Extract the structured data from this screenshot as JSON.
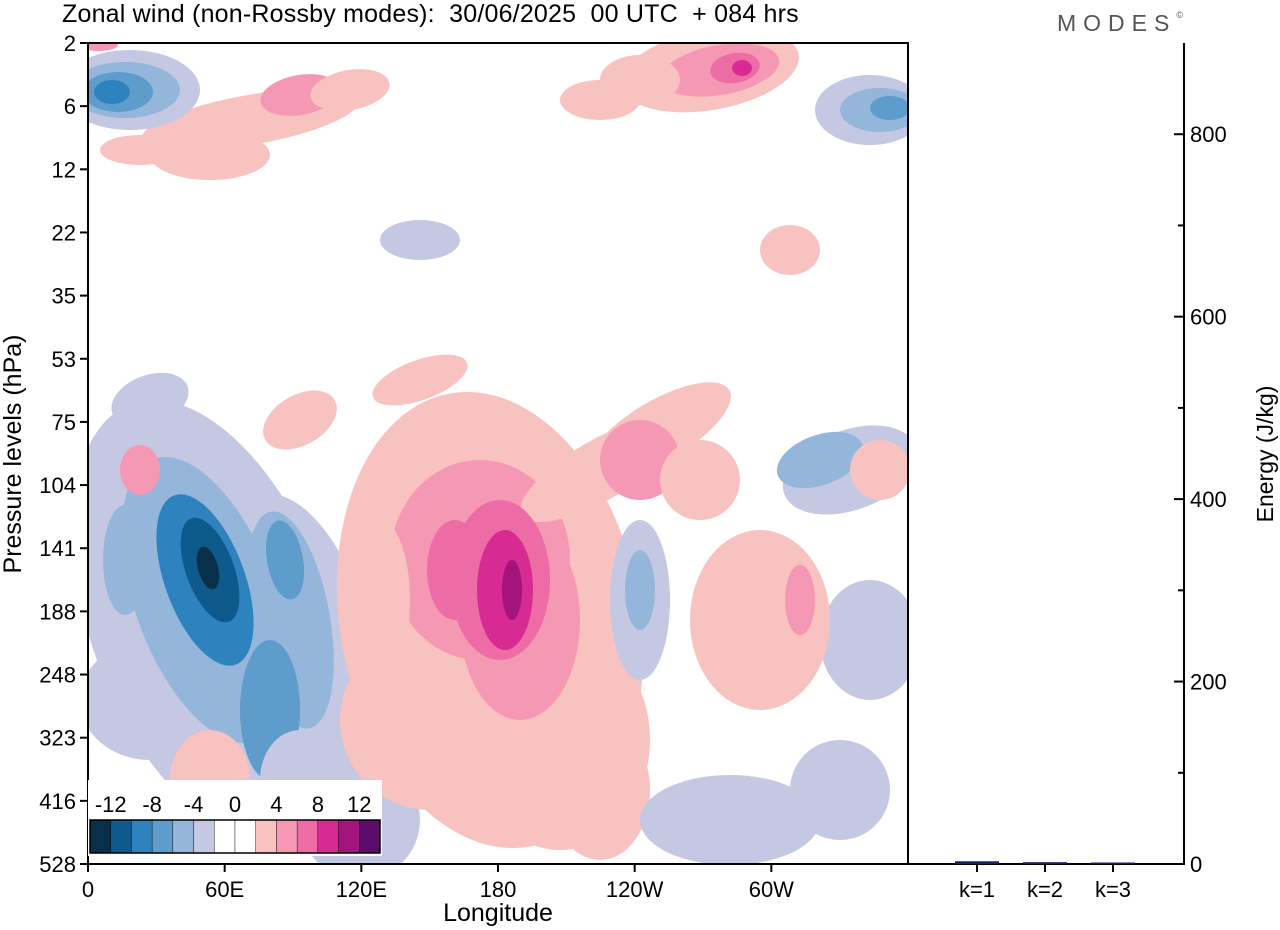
{
  "header": {
    "title": "Zonal wind (non-Rossby modes):  30/06/2025  00 UTC  + 084 hrs",
    "brand": "MODES",
    "brand_mark": "©"
  },
  "chart_data": [
    {
      "type": "heatmap",
      "title": "Zonal wind (non-Rossby modes):  30/06/2025  00 UTC  + 084 hrs",
      "xlabel": "Longitude",
      "ylabel": "Pressure levels (hPa)",
      "x_ticks": [
        "0",
        "60E",
        "120E",
        "180",
        "120W",
        "60W"
      ],
      "x_tick_degrees": [
        0,
        60,
        120,
        180,
        240,
        300
      ],
      "xlim": [
        0,
        360
      ],
      "y_ticks": [
        "2",
        "6",
        "12",
        "22",
        "35",
        "53",
        "75",
        "104",
        "141",
        "188",
        "248",
        "323",
        "416",
        "528"
      ],
      "y_scale": "ordinal (model levels, top = 2 hPa, bottom = 528 hPa)",
      "colorbar": {
        "labels": [
          "-12",
          "-8",
          "-4",
          "0",
          "4",
          "8",
          "12"
        ],
        "levels": [
          -14,
          -12,
          -10,
          -8,
          -6,
          -4,
          -2,
          0,
          2,
          4,
          6,
          8,
          10,
          12,
          14
        ],
        "colors": [
          "#08304a",
          "#0e5a8c",
          "#2e82bd",
          "#5e9ccc",
          "#94b6da",
          "#c4c8e2",
          "#ffffff",
          "#ffffff",
          "#f7c2c0",
          "#f598b4",
          "#ee6ca6",
          "#d72a92",
          "#a3157d",
          "#5c0c6a"
        ]
      },
      "features": [
        {
          "name": "stratosphere negative band 0-30E",
          "lon": 15,
          "level": "6",
          "value": -12
        },
        {
          "name": "stratosphere positive band near 75W",
          "lon": 285,
          "level": "4",
          "value": 10
        },
        {
          "name": "stratosphere negative near 5W",
          "lon": 355,
          "level": "8",
          "value": -8
        },
        {
          "name": "upper-troposphere negative core",
          "lon": 55,
          "level": "141",
          "value": -14
        },
        {
          "name": "upper-troposphere negative lobe",
          "lon": 80,
          "level": "248",
          "value": -8
        },
        {
          "name": "upper-troposphere positive core",
          "lon": 185,
          "level": "141",
          "value": 12
        },
        {
          "name": "positive band 100W-160W",
          "lon": 230,
          "level": "104",
          "value": 4
        },
        {
          "name": "negative feature near 105W",
          "lon": 255,
          "level": "160",
          "value": -6
        },
        {
          "name": "positive feature near 85W",
          "lon": 280,
          "level": "188",
          "value": 4
        },
        {
          "name": "negative feature near 35W",
          "lon": 325,
          "level": "104",
          "value": -8
        }
      ]
    },
    {
      "type": "bar",
      "ylabel": "Energy (J/kg)",
      "categories": [
        "k=1",
        "k=2",
        "k=3"
      ],
      "values": [
        3,
        2,
        1
      ],
      "ylim": [
        0,
        900
      ],
      "y_ticks": [
        0,
        200,
        400,
        600,
        800
      ],
      "bar_color": "#1a1a6e"
    }
  ]
}
